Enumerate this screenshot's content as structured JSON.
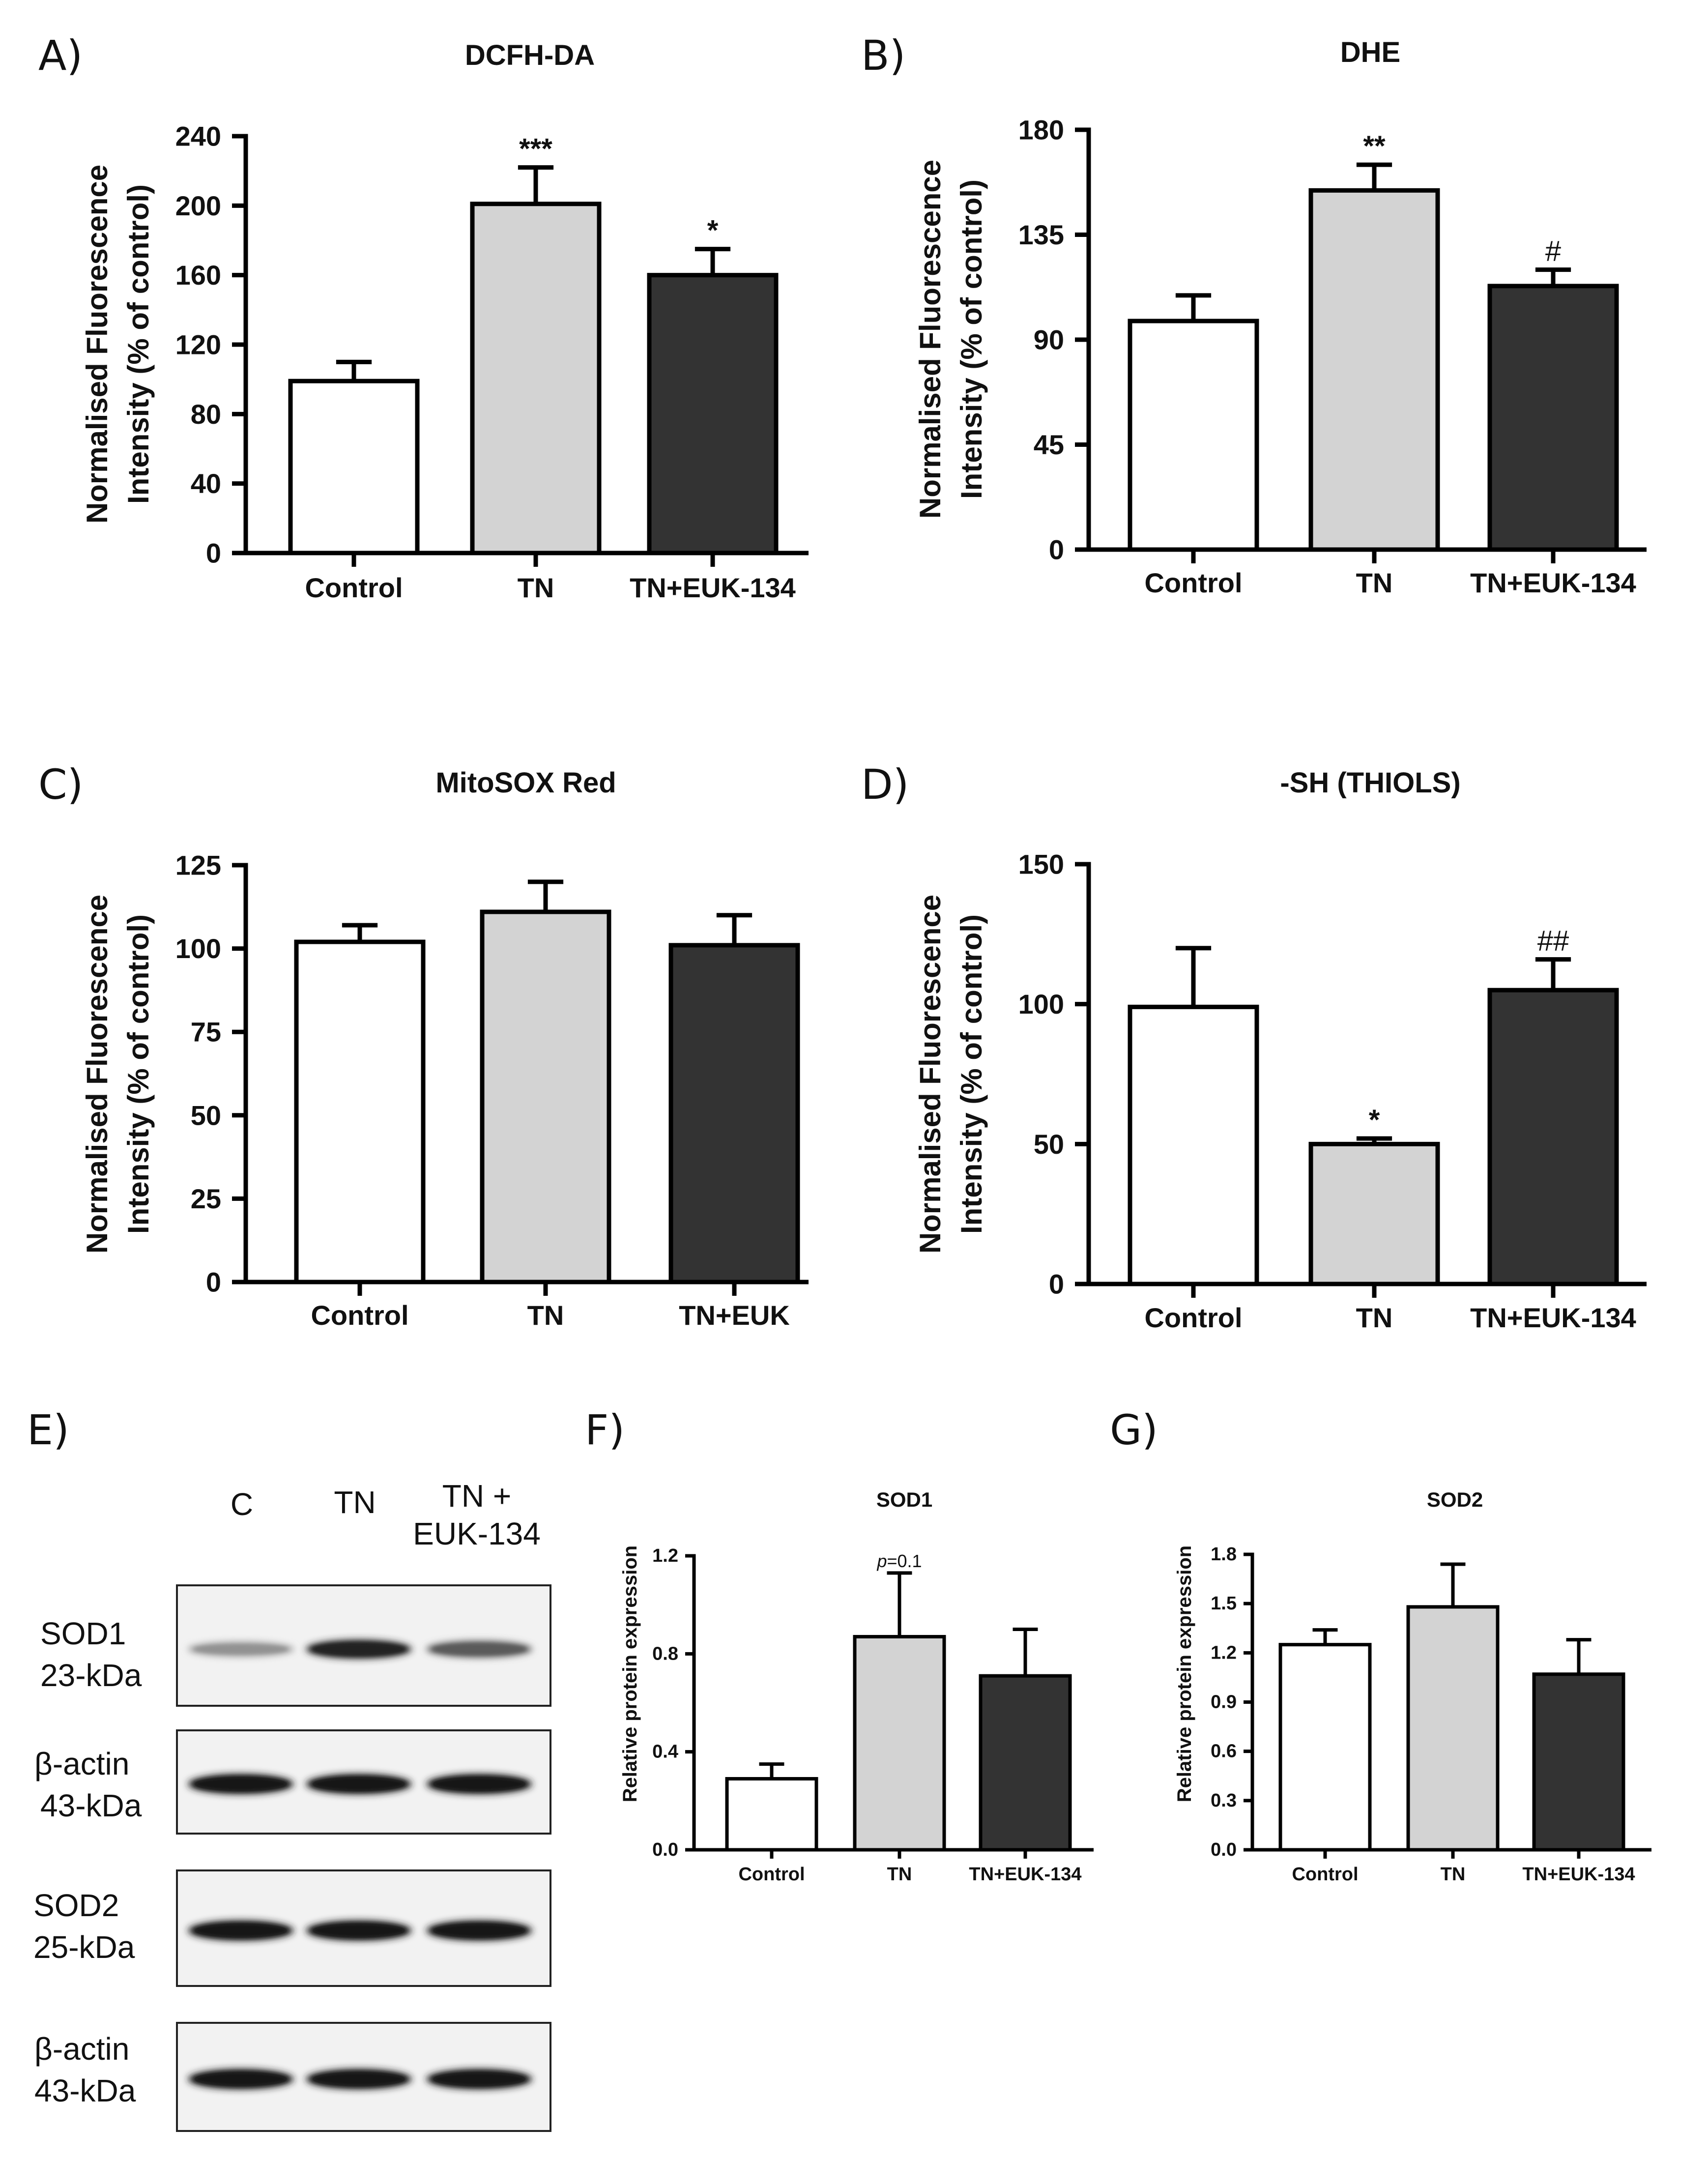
{
  "panels": [
    {
      "letter": "A)",
      "title": "DCFH-DA",
      "ylabel_line1": "Normalised Fluorescence",
      "ylabel_line2": "Intensity (% of control)"
    },
    {
      "letter": "B)",
      "title": "DHE",
      "ylabel_line1": "Normalised Fluorescence",
      "ylabel_line2": "Intensity (% of control)"
    },
    {
      "letter": "C)",
      "title": "MitoSOX Red",
      "ylabel_line1": "Normalised Fluorescence",
      "ylabel_line2": "Intensity (% of control)"
    },
    {
      "letter": "D)",
      "title": "-SH (THIOLS)",
      "ylabel_line1": "Normalised Fluorescence",
      "ylabel_line2": "Intensity (% of control)"
    },
    {
      "letter": "F)",
      "title": "SOD1",
      "ylabel_line1": "Relative protein expression",
      "ylabel_line2": ""
    },
    {
      "letter": "G)",
      "title": "SOD2",
      "ylabel_line1": "Relative protein expression",
      "ylabel_line2": ""
    }
  ],
  "chart_data": [
    {
      "type": "bar",
      "title": "DCFH-DA",
      "ylabel": "Normalised Fluorescence Intensity (% of control)",
      "categories": [
        "Control",
        "TN",
        "TN+EUK-134"
      ],
      "values": [
        99,
        201,
        160
      ],
      "errors": [
        11,
        21,
        15
      ],
      "annotations": [
        "",
        "***",
        "*"
      ],
      "colors": [
        "#ffffff",
        "#d3d3d3",
        "#333333"
      ],
      "yticks": [
        0,
        40,
        80,
        120,
        160,
        200,
        240
      ],
      "ylim": [
        0,
        240
      ]
    },
    {
      "type": "bar",
      "title": "DHE",
      "ylabel": "Normalised Fluorescence Intensity (% of control)",
      "categories": [
        "Control",
        "TN",
        "TN+EUK-134"
      ],
      "values": [
        98,
        154,
        113
      ],
      "errors": [
        11,
        11,
        7
      ],
      "annotations": [
        "",
        "**",
        "#"
      ],
      "colors": [
        "#ffffff",
        "#d3d3d3",
        "#333333"
      ],
      "yticks": [
        0,
        45,
        90,
        135,
        180
      ],
      "ylim": [
        0,
        180
      ]
    },
    {
      "type": "bar",
      "title": "MitoSOX Red",
      "ylabel": "Normalised Fluorescence Intensity (% of control)",
      "categories": [
        "Control",
        "TN",
        "TN+EUK"
      ],
      "values": [
        102,
        111,
        101
      ],
      "errors": [
        5,
        9,
        9
      ],
      "annotations": [
        "",
        "",
        ""
      ],
      "colors": [
        "#ffffff",
        "#d3d3d3",
        "#333333"
      ],
      "yticks": [
        0,
        25,
        50,
        75,
        100,
        125
      ],
      "ylim": [
        0,
        125
      ]
    },
    {
      "type": "bar",
      "title": "-SH (THIOLS)",
      "ylabel": "Normalised Fluorescence Intensity (% of control)",
      "categories": [
        "Control",
        "TN",
        "TN+EUK-134"
      ],
      "values": [
        99,
        50,
        105
      ],
      "errors": [
        21,
        2,
        11
      ],
      "annotations": [
        "",
        "*",
        "##"
      ],
      "colors": [
        "#ffffff",
        "#d3d3d3",
        "#333333"
      ],
      "yticks": [
        0,
        50,
        100,
        150
      ],
      "ylim": [
        0,
        150
      ]
    },
    {
      "type": "bar",
      "title": "SOD1",
      "ylabel": "Relative protein expression",
      "categories": [
        "Control",
        "TN",
        "TN+EUK-134"
      ],
      "values": [
        0.29,
        0.87,
        0.71
      ],
      "errors": [
        0.06,
        0.26,
        0.19
      ],
      "annotations": [
        "",
        "p=0.1",
        ""
      ],
      "colors": [
        "#ffffff",
        "#d3d3d3",
        "#333333"
      ],
      "yticks": [
        0.0,
        0.4,
        0.8,
        1.2
      ],
      "ytick_labels": [
        "0.0",
        "0.4",
        "0.8",
        "1.2"
      ],
      "ylim": [
        0,
        1.2
      ]
    },
    {
      "type": "bar",
      "title": "SOD2",
      "ylabel": "Relative protein expression",
      "categories": [
        "Control",
        "TN",
        "TN+EUK-134"
      ],
      "values": [
        1.25,
        1.48,
        1.07
      ],
      "errors": [
        0.09,
        0.26,
        0.21
      ],
      "annotations": [
        "",
        "",
        ""
      ],
      "colors": [
        "#ffffff",
        "#d3d3d3",
        "#333333"
      ],
      "yticks": [
        0.0,
        0.3,
        0.6,
        0.9,
        1.2,
        1.5,
        1.8
      ],
      "ytick_labels": [
        "0.0",
        "0.3",
        "0.6",
        "0.9",
        "1.2",
        "1.5",
        "1.8"
      ],
      "ylim": [
        0,
        1.8
      ]
    }
  ],
  "western_blot": {
    "letter": "E)",
    "lanes": [
      "C",
      "TN",
      "TN +",
      "EUK-134"
    ],
    "rows": [
      {
        "name": "SOD1",
        "size": "23-kDa",
        "band_intensity": [
          0.35,
          0.85,
          0.6
        ]
      },
      {
        "name": "β-actin",
        "size": "43-kDa",
        "band_intensity": [
          0.9,
          0.9,
          0.9
        ]
      },
      {
        "name": "SOD2",
        "size": "25-kDa",
        "band_intensity": [
          0.9,
          0.9,
          0.9
        ]
      },
      {
        "name": "β-actin",
        "size": "43-kDa",
        "band_intensity": [
          0.9,
          0.9,
          0.9
        ]
      }
    ]
  }
}
